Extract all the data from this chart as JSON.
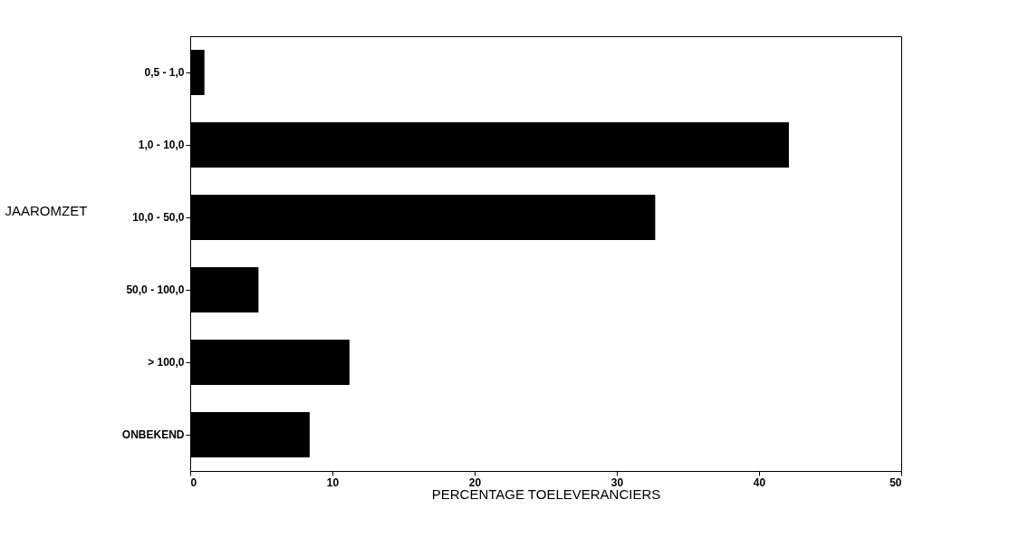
{
  "chart_data": {
    "type": "bar",
    "orientation": "horizontal",
    "xlabel": "PERCENTAGE TOELEVERANCIERS",
    "ylabel": "JAAROMZET",
    "categories": [
      "0,5 - 1,0",
      "1,0 - 10,0",
      "10,0 - 50,0",
      "50,0 - 100,0",
      "> 100,0",
      "ONBEKEND"
    ],
    "values": [
      1.0,
      42.1,
      32.7,
      4.8,
      11.2,
      8.4
    ],
    "color": "#000000",
    "xlim": [
      0,
      50
    ],
    "xticks": [
      0,
      10,
      20,
      30,
      40,
      50
    ],
    "grid": false
  }
}
